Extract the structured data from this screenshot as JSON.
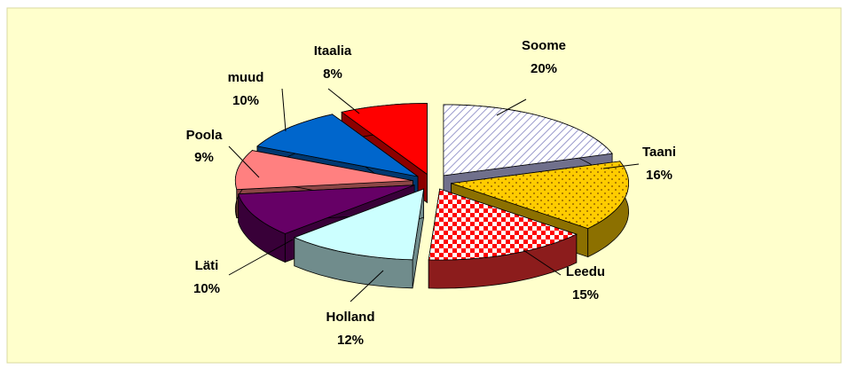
{
  "chart_data": {
    "type": "pie3d",
    "categories": [
      "Soome",
      "Taani",
      "Leedu",
      "Holland",
      "Läti",
      "Poola",
      "muud",
      "Itaalia"
    ],
    "values": [
      20,
      16,
      15,
      12,
      10,
      9,
      10,
      8
    ],
    "value_labels": [
      "20%",
      "16%",
      "15%",
      "12%",
      "10%",
      "9%",
      "10%",
      "8%"
    ],
    "colors": [
      "#ccccff",
      "#ffcc00",
      "#ff3333",
      "#ccffff",
      "#660066",
      "#ff8080",
      "#0066cc",
      "#ff0000"
    ]
  }
}
